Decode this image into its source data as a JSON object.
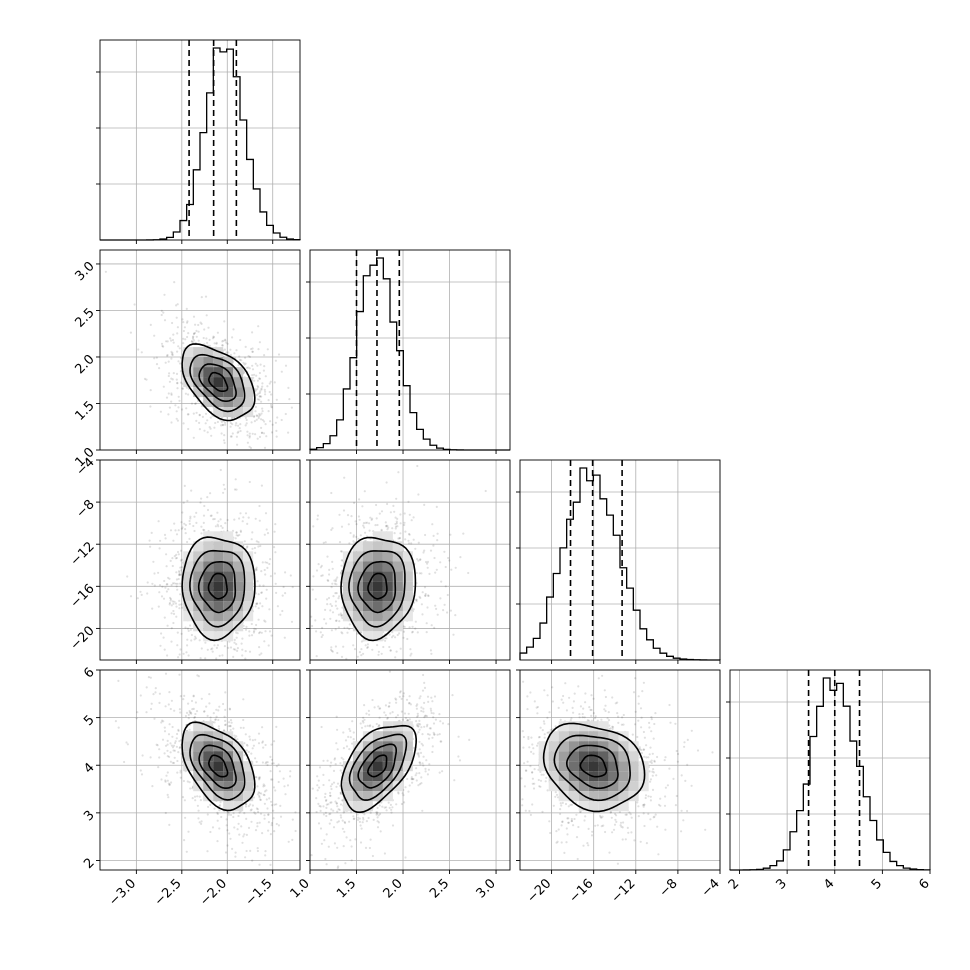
{
  "chart_data": {
    "type": "scatter",
    "subtype": "corner-plot",
    "title": "",
    "parameters": [
      {
        "name": "",
        "range": [
          -3.4,
          -1.2
        ],
        "ticks": [
          -3.0,
          -2.5,
          -2.0,
          -1.5
        ],
        "tick_labels": [
          "−3.0",
          "−2.5",
          "−2.0",
          "−1.5"
        ],
        "mean": -2.1,
        "sd": 0.2,
        "quantiles": [
          -2.42,
          -2.15,
          -1.9
        ],
        "peak": -2.05
      },
      {
        "name": "",
        "range": [
          1.0,
          3.15
        ],
        "ticks": [
          1.0,
          1.5,
          2.0,
          2.5,
          3.0
        ],
        "tick_labels": [
          "1.0",
          "1.5",
          "2.0",
          "2.5",
          "3.0"
        ],
        "mean": 1.73,
        "sd": 0.2,
        "quantiles": [
          1.5,
          1.72,
          1.96
        ],
        "peak": 1.7
      },
      {
        "name": "",
        "range": [
          -23.0,
          -4.0
        ],
        "ticks": [
          -20,
          -16,
          -12,
          -8,
          -4
        ],
        "tick_labels": [
          "−20",
          "−16",
          "−12",
          "−8",
          "−4"
        ],
        "mean": -16.0,
        "sd": 2.4,
        "quantiles": [
          -18.2,
          -16.1,
          -13.3
        ],
        "peak": -16.5
      },
      {
        "name": "",
        "range": [
          1.8,
          6.0
        ],
        "ticks": [
          2,
          3,
          4,
          5,
          6
        ],
        "tick_labels": [
          "2",
          "3",
          "4",
          "5",
          "6"
        ],
        "mean": 3.98,
        "sd": 0.45,
        "quantiles": [
          3.45,
          4.0,
          4.52
        ],
        "peak": 3.95
      }
    ],
    "correlations": [
      [
        1,
        -0.45,
        0.0,
        -0.45
      ],
      [
        -0.45,
        1,
        0.05,
        0.5
      ],
      [
        0.0,
        0.05,
        1,
        -0.2
      ],
      [
        -0.45,
        0.5,
        -0.2,
        1
      ]
    ],
    "grid": true,
    "legend": "none",
    "diagonal": "step histograms with dashed quantile lines",
    "off_diagonal": "2D density histograms with contours and scatter points"
  }
}
